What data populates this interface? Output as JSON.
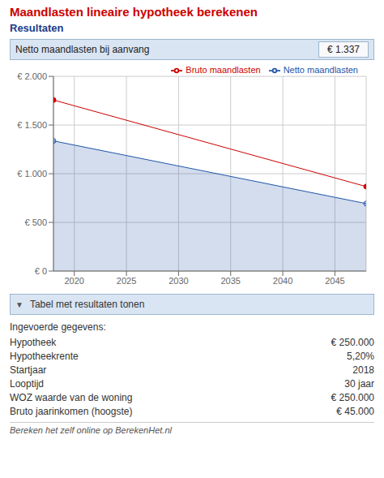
{
  "chart_data": {
    "type": "line",
    "title": "Maandlasten lineaire hypotheek berekenen",
    "subtitle": "Resultaten",
    "x": [
      2018,
      2048
    ],
    "series": [
      {
        "name": "Bruto maandlasten",
        "type": "line",
        "color": "#cc0000",
        "marker": "o",
        "values": [
          1757,
          868
        ]
      },
      {
        "name": "Netto maandlasten",
        "type": "area",
        "color": "#2255aa",
        "marker": "o",
        "values": [
          1337,
          693
        ]
      }
    ],
    "xlim": [
      2018,
      2048
    ],
    "xticks": [
      2020,
      2025,
      2030,
      2035,
      2040,
      2045
    ],
    "ylim": [
      0,
      2000
    ],
    "yticks": [
      {
        "value": 0,
        "label": "€ 0"
      },
      {
        "value": 500,
        "label": "€ 500"
      },
      {
        "value": 1000,
        "label": "€ 1.000"
      },
      {
        "value": 1500,
        "label": "€ 1.500"
      },
      {
        "value": 2000,
        "label": "€ 2.000"
      }
    ],
    "grid": true,
    "legend": "upper right",
    "annotations": [
      "Netto maandlasten bij aanvang",
      "€ 1.337",
      "▼",
      "Tabel met resultaten tonen",
      "Ingevoerde gegevens:",
      "Hypotheek",
      "€ 250.000",
      "Hypotheekrente",
      "5,20%",
      "Startjaar",
      "2018",
      "Looptijd",
      "30 jaar",
      "WOZ waarde van de woning",
      "€ 250.000",
      "Bruto jaarinkomen (hoogste)",
      "€ 45.000",
      "Bereken het zelf online op BerekenHet.nl"
    ]
  }
}
